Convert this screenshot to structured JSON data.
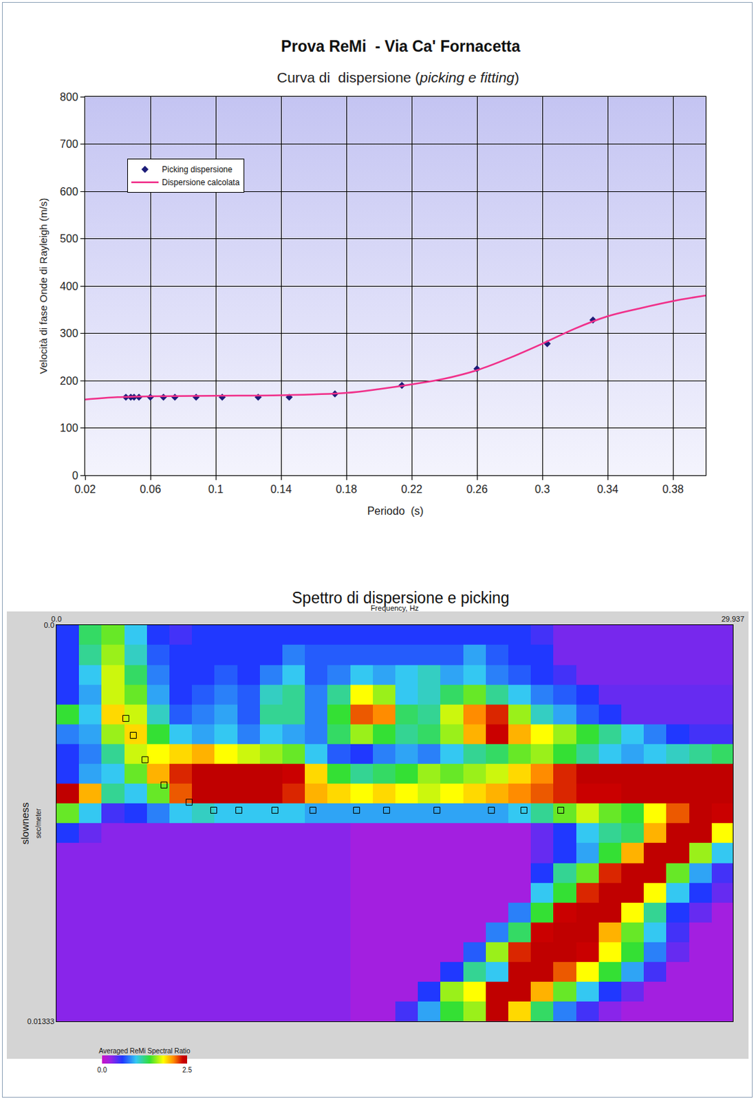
{
  "chart_data": [
    {
      "type": "line",
      "title": "Prova ReMi  - Via Ca' Fornacetta",
      "subtitle": "Curva di  dispersione (picking e fitting)",
      "x_label": "Periodo  (s)",
      "y_label": "Velocità di fase Onde di Rayleigh (m/s)",
      "xlim": [
        0.02,
        0.4
      ],
      "xticks": [
        0.02,
        0.06,
        0.1,
        0.14,
        0.18,
        0.22,
        0.26,
        0.3,
        0.34,
        0.38
      ],
      "ylim": [
        0,
        800
      ],
      "yticks": [
        0,
        100,
        200,
        300,
        400,
        500,
        600,
        700,
        800
      ],
      "grid": true,
      "legend": "upper left",
      "series": [
        {
          "name": "Picking dispersione",
          "type": "scatter",
          "marker": "diamond",
          "color": "#1c1c78",
          "x": [
            0.045,
            0.048,
            0.05,
            0.053,
            0.06,
            0.068,
            0.075,
            0.088,
            0.104,
            0.126,
            0.145,
            0.173,
            0.214,
            0.26,
            0.303,
            0.331
          ],
          "values": [
            165,
            165,
            165,
            165,
            165,
            165,
            165,
            165,
            165,
            165,
            165,
            172,
            190,
            225,
            278,
            328
          ]
        },
        {
          "name": "Dispersione calcolata",
          "type": "line",
          "color": "#f0308a",
          "x": [
            0.02,
            0.04,
            0.06,
            0.1,
            0.14,
            0.18,
            0.2,
            0.22,
            0.24,
            0.26,
            0.28,
            0.3,
            0.32,
            0.34,
            0.36,
            0.38,
            0.4
          ],
          "values": [
            160,
            165,
            167,
            168,
            169,
            174,
            182,
            192,
            204,
            222,
            248,
            278,
            310,
            336,
            353,
            368,
            380
          ]
        }
      ]
    },
    {
      "type": "heatmap",
      "title": "Spettro di dispersione e picking",
      "x_label": "Frequency, Hz",
      "y_label": [
        "slowness",
        "sec/meter"
      ],
      "xlim": [
        0,
        29.937
      ],
      "xticks": [
        {
          "value": 0,
          "label": "0.0"
        },
        29.937
      ],
      "ylim": [
        0,
        0.01333
      ],
      "yticks": [
        {
          "value": 0,
          "label": "0.0"
        },
        0.01333
      ],
      "x": [
        0.5,
        1.5,
        2.5,
        3.5,
        4.5,
        5.5,
        6.5,
        7.5,
        8.5,
        9.5,
        10.5,
        11.5,
        12.5,
        13.5,
        14.5,
        15.5,
        16.5,
        17.5,
        18.5,
        19.5,
        20.5,
        21.5,
        22.5,
        23.5,
        24.5,
        25.5,
        26.5,
        27.5,
        28.5,
        29.5
      ],
      "y": [
        0.00033,
        0.001,
        0.00167,
        0.00233,
        0.003,
        0.00367,
        0.00433,
        0.005,
        0.00567,
        0.00633,
        0.007,
        0.00767,
        0.00833,
        0.009,
        0.00967,
        0.01033,
        0.011,
        0.01167,
        0.01233,
        0.013
      ],
      "z": [
        [
          0.6,
          1.3,
          1.5,
          1.0,
          0.6,
          0.5,
          0.6,
          0.6,
          0.6,
          0.6,
          0.6,
          0.6,
          0.6,
          0.6,
          0.6,
          0.6,
          0.6,
          0.6,
          0.6,
          0.6,
          0.6,
          0.5,
          0.35,
          0.35,
          0.35,
          0.35,
          0.35,
          0.35,
          0.35,
          0.35
        ],
        [
          0.6,
          1.2,
          1.6,
          1.1,
          0.7,
          0.6,
          0.6,
          0.6,
          0.6,
          0.6,
          0.8,
          0.7,
          0.7,
          0.7,
          0.7,
          0.7,
          0.7,
          0.7,
          0.9,
          0.7,
          0.6,
          0.6,
          0.35,
          0.35,
          0.35,
          0.35,
          0.35,
          0.35,
          0.35,
          0.35
        ],
        [
          0.6,
          1.0,
          1.7,
          1.3,
          0.8,
          0.6,
          0.6,
          0.7,
          0.6,
          0.8,
          1.0,
          0.7,
          0.8,
          1.0,
          0.9,
          1.0,
          1.1,
          0.9,
          1.0,
          0.8,
          0.7,
          0.6,
          0.5,
          0.35,
          0.35,
          0.35,
          0.35,
          0.35,
          0.35,
          0.35
        ],
        [
          0.6,
          0.9,
          1.7,
          1.5,
          0.9,
          0.6,
          0.7,
          0.8,
          0.7,
          1.1,
          1.2,
          0.8,
          1.2,
          1.8,
          1.6,
          1.0,
          1.1,
          1.3,
          1.5,
          1.2,
          1.0,
          0.8,
          0.7,
          0.6,
          0.4,
          0.4,
          0.4,
          0.4,
          0.4,
          0.4
        ],
        [
          1.4,
          1.0,
          1.9,
          1.7,
          1.1,
          0.7,
          0.8,
          0.9,
          0.7,
          1.2,
          1.2,
          0.8,
          1.4,
          2.2,
          2.1,
          1.3,
          1.2,
          1.7,
          2.1,
          2.3,
          1.6,
          1.1,
          0.9,
          0.7,
          0.6,
          0.4,
          0.4,
          0.4,
          0.4,
          0.4
        ],
        [
          0.8,
          0.9,
          1.6,
          1.9,
          1.4,
          1.0,
          0.9,
          1.0,
          0.8,
          1.0,
          0.9,
          0.8,
          1.3,
          1.6,
          1.4,
          1.2,
          1.3,
          1.6,
          2.0,
          2.4,
          2.0,
          1.8,
          1.6,
          1.4,
          1.2,
          1.0,
          0.8,
          0.6,
          0.5,
          0.5
        ],
        [
          0.6,
          0.8,
          1.2,
          1.7,
          1.8,
          1.9,
          2.0,
          1.8,
          1.7,
          1.6,
          1.5,
          1.0,
          0.7,
          0.6,
          0.8,
          0.9,
          0.8,
          1.0,
          1.2,
          1.3,
          1.5,
          1.6,
          1.4,
          1.2,
          1.0,
          0.9,
          1.0,
          1.1,
          1.2,
          1.3
        ],
        [
          0.6,
          0.9,
          1.0,
          1.5,
          2.0,
          2.3,
          2.5,
          2.5,
          2.5,
          2.5,
          2.4,
          1.9,
          1.4,
          1.2,
          1.3,
          1.4,
          1.6,
          1.5,
          1.6,
          1.7,
          1.9,
          2.1,
          2.3,
          2.5,
          2.5,
          2.5,
          2.5,
          2.5,
          2.5,
          2.5
        ],
        [
          2.5,
          2.0,
          1.2,
          1.0,
          1.5,
          2.2,
          2.5,
          2.5,
          2.5,
          2.5,
          2.3,
          2.0,
          1.9,
          1.8,
          1.9,
          1.8,
          1.7,
          1.8,
          1.9,
          2.0,
          2.1,
          2.2,
          2.3,
          2.4,
          2.4,
          2.5,
          2.5,
          2.5,
          2.5,
          2.5
        ],
        [
          1.5,
          1.0,
          0.5,
          0.6,
          0.8,
          1.0,
          1.1,
          1.0,
          1.0,
          1.0,
          1.0,
          0.9,
          0.9,
          0.9,
          0.9,
          0.9,
          0.9,
          0.9,
          0.9,
          0.9,
          1.0,
          1.2,
          1.5,
          1.7,
          1.5,
          1.4,
          1.8,
          2.2,
          2.5,
          2.4
        ],
        [
          0.6,
          0.4,
          0.3,
          0.3,
          0.3,
          0.3,
          0.3,
          0.3,
          0.3,
          0.3,
          0.3,
          0.3,
          0.3,
          0.2,
          0.2,
          0.2,
          0.2,
          0.2,
          0.2,
          0.2,
          0.2,
          0.4,
          0.6,
          1.0,
          1.2,
          1.3,
          2.0,
          2.5,
          2.5,
          1.8
        ],
        [
          0.3,
          0.3,
          0.3,
          0.3,
          0.3,
          0.3,
          0.3,
          0.3,
          0.3,
          0.3,
          0.3,
          0.3,
          0.3,
          0.2,
          0.2,
          0.2,
          0.2,
          0.2,
          0.2,
          0.2,
          0.2,
          0.4,
          0.6,
          0.9,
          1.4,
          2.0,
          2.5,
          2.5,
          1.6,
          1.0
        ],
        [
          0.3,
          0.3,
          0.3,
          0.3,
          0.3,
          0.3,
          0.3,
          0.3,
          0.3,
          0.3,
          0.3,
          0.3,
          0.3,
          0.2,
          0.2,
          0.2,
          0.2,
          0.2,
          0.2,
          0.2,
          0.2,
          0.6,
          1.2,
          1.5,
          2.3,
          2.5,
          2.5,
          1.5,
          0.9,
          0.5
        ],
        [
          0.3,
          0.3,
          0.3,
          0.3,
          0.3,
          0.3,
          0.3,
          0.3,
          0.3,
          0.3,
          0.3,
          0.3,
          0.3,
          0.2,
          0.2,
          0.2,
          0.2,
          0.2,
          0.2,
          0.2,
          0.2,
          1.0,
          1.4,
          2.3,
          2.5,
          2.5,
          1.8,
          1.0,
          0.6,
          0.4
        ],
        [
          0.3,
          0.3,
          0.3,
          0.3,
          0.3,
          0.3,
          0.3,
          0.3,
          0.3,
          0.3,
          0.3,
          0.3,
          0.3,
          0.2,
          0.2,
          0.2,
          0.2,
          0.2,
          0.2,
          0.2,
          0.8,
          1.4,
          2.4,
          2.5,
          2.5,
          1.8,
          1.2,
          0.6,
          0.4,
          0.2
        ],
        [
          0.3,
          0.3,
          0.3,
          0.3,
          0.3,
          0.3,
          0.3,
          0.3,
          0.3,
          0.3,
          0.3,
          0.3,
          0.3,
          0.2,
          0.2,
          0.2,
          0.2,
          0.2,
          0.2,
          0.8,
          1.3,
          2.4,
          2.5,
          2.5,
          2.0,
          1.5,
          1.0,
          0.5,
          0.2,
          0.2
        ],
        [
          0.3,
          0.3,
          0.3,
          0.3,
          0.3,
          0.3,
          0.3,
          0.3,
          0.3,
          0.3,
          0.3,
          0.3,
          0.3,
          0.2,
          0.2,
          0.2,
          0.2,
          0.2,
          0.7,
          1.6,
          2.3,
          2.5,
          2.5,
          2.4,
          1.8,
          1.4,
          0.8,
          0.4,
          0.2,
          0.2
        ],
        [
          0.3,
          0.3,
          0.3,
          0.3,
          0.3,
          0.3,
          0.3,
          0.3,
          0.3,
          0.3,
          0.3,
          0.3,
          0.3,
          0.2,
          0.2,
          0.2,
          0.2,
          0.6,
          1.2,
          1.0,
          2.5,
          2.5,
          2.2,
          1.8,
          1.4,
          0.9,
          0.5,
          0.2,
          0.2,
          0.2
        ],
        [
          0.3,
          0.3,
          0.3,
          0.3,
          0.3,
          0.3,
          0.3,
          0.3,
          0.3,
          0.3,
          0.3,
          0.3,
          0.3,
          0.2,
          0.2,
          0.2,
          0.6,
          1.6,
          1.8,
          2.5,
          2.5,
          2.0,
          1.5,
          1.0,
          0.6,
          0.4,
          0.2,
          0.2,
          0.2,
          0.2
        ],
        [
          0.3,
          0.3,
          0.3,
          0.3,
          0.3,
          0.3,
          0.3,
          0.3,
          0.3,
          0.3,
          0.3,
          0.3,
          0.3,
          0.2,
          0.2,
          0.5,
          0.9,
          1.4,
          1.6,
          2.5,
          1.9,
          1.3,
          0.8,
          0.5,
          0.3,
          0.2,
          0.2,
          0.2,
          0.2,
          0.2
        ]
      ],
      "colorbar": {
        "title": "Averaged ReMi Spectral Ratio",
        "range": [
          0,
          2.5
        ],
        "ticks": [
          {
            "value": 0,
            "label": "0.0"
          },
          2.5
        ]
      },
      "series": [
        {
          "type": "scatter",
          "marker": "square-open",
          "color": "#000000",
          "x": [
            3.07,
            3.4,
            3.92,
            4.76,
            5.87,
            6.96,
            8.07,
            9.67,
            11.35,
            13.28,
            14.61,
            16.84,
            19.25,
            20.69,
            22.32
          ],
          "values": [
            0.00314,
            0.00371,
            0.00453,
            0.00538,
            0.00596,
            0.00623,
            0.00623,
            0.00623,
            0.00623,
            0.00623,
            0.00623,
            0.00623,
            0.00623,
            0.00623,
            0.00623
          ]
        }
      ]
    }
  ]
}
